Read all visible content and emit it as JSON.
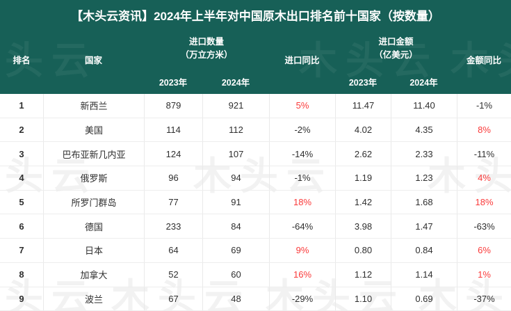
{
  "title": "【木头云资讯】2024年上半年对中国原木出口排名前十国家（按数量）",
  "watermark_text": "木头云",
  "colors": {
    "header_green": "#176057",
    "accent_red": "#fa3a3a",
    "body_text": "#2f2f2f"
  },
  "header": {
    "rank": "排名",
    "country": "国家",
    "qty_group_line1": "进口数量",
    "qty_group_line2": "（万立方米）",
    "qty_yoy": "进口同比",
    "amt_group_line1": "进口金额",
    "amt_group_line2": "（亿美元）",
    "amt_yoy": "金额同比",
    "qty_year_2023": "2023年",
    "qty_year_2024": "2024年",
    "amt_year_2023": "2023年",
    "amt_year_2024": "2024年"
  },
  "rows": [
    {
      "rank": "1",
      "country": "新西兰",
      "qty_2023": "879",
      "qty_2024": "921",
      "qty_yoy": "5%",
      "qty_yoy_up": true,
      "amt_2023": "11.47",
      "amt_2024": "11.40",
      "amt_yoy": "-1%",
      "amt_yoy_up": false
    },
    {
      "rank": "2",
      "country": "美国",
      "qty_2023": "114",
      "qty_2024": "112",
      "qty_yoy": "-2%",
      "qty_yoy_up": false,
      "amt_2023": "4.02",
      "amt_2024": "4.35",
      "amt_yoy": "8%",
      "amt_yoy_up": true
    },
    {
      "rank": "3",
      "country": "巴布亚新几内亚",
      "qty_2023": "124",
      "qty_2024": "107",
      "qty_yoy": "-14%",
      "qty_yoy_up": false,
      "amt_2023": "2.62",
      "amt_2024": "2.33",
      "amt_yoy": "-11%",
      "amt_yoy_up": false
    },
    {
      "rank": "4",
      "country": "俄罗斯",
      "qty_2023": "96",
      "qty_2024": "94",
      "qty_yoy": "-1%",
      "qty_yoy_up": false,
      "amt_2023": "1.19",
      "amt_2024": "1.23",
      "amt_yoy": "4%",
      "amt_yoy_up": true
    },
    {
      "rank": "5",
      "country": "所罗门群岛",
      "qty_2023": "77",
      "qty_2024": "91",
      "qty_yoy": "18%",
      "qty_yoy_up": true,
      "amt_2023": "1.42",
      "amt_2024": "1.68",
      "amt_yoy": "18%",
      "amt_yoy_up": true
    },
    {
      "rank": "6",
      "country": "德国",
      "qty_2023": "233",
      "qty_2024": "84",
      "qty_yoy": "-64%",
      "qty_yoy_up": false,
      "amt_2023": "3.98",
      "amt_2024": "1.47",
      "amt_yoy": "-63%",
      "amt_yoy_up": false
    },
    {
      "rank": "7",
      "country": "日本",
      "qty_2023": "64",
      "qty_2024": "69",
      "qty_yoy": "9%",
      "qty_yoy_up": true,
      "amt_2023": "0.80",
      "amt_2024": "0.84",
      "amt_yoy": "6%",
      "amt_yoy_up": true
    },
    {
      "rank": "8",
      "country": "加拿大",
      "qty_2023": "52",
      "qty_2024": "60",
      "qty_yoy": "16%",
      "qty_yoy_up": true,
      "amt_2023": "1.12",
      "amt_2024": "1.14",
      "amt_yoy": "1%",
      "amt_yoy_up": true
    },
    {
      "rank": "9",
      "country": "波兰",
      "qty_2023": "67",
      "qty_2024": "48",
      "qty_yoy": "-29%",
      "qty_yoy_up": false,
      "amt_2023": "1.10",
      "amt_2024": "0.69",
      "amt_yoy": "-37%",
      "amt_yoy_up": false
    }
  ],
  "chart_data": {
    "type": "table",
    "title": "【木头云资讯】2024年上半年对中国原木出口排名前十国家（按数量）",
    "columns": [
      "排名",
      "国家",
      "进口数量 2023年（万立方米）",
      "进口数量 2024年（万立方米）",
      "进口同比",
      "进口金额 2023年（亿美元）",
      "进口金额 2024年（亿美元）",
      "金额同比"
    ],
    "rows": [
      [
        1,
        "新西兰",
        879,
        921,
        "5%",
        11.47,
        11.4,
        "-1%"
      ],
      [
        2,
        "美国",
        114,
        112,
        "-2%",
        4.02,
        4.35,
        "8%"
      ],
      [
        3,
        "巴布亚新几内亚",
        124,
        107,
        "-14%",
        2.62,
        2.33,
        "-11%"
      ],
      [
        4,
        "俄罗斯",
        96,
        94,
        "-1%",
        1.19,
        1.23,
        "4%"
      ],
      [
        5,
        "所罗门群岛",
        77,
        91,
        "18%",
        1.42,
        1.68,
        "18%"
      ],
      [
        6,
        "德国",
        233,
        84,
        "-64%",
        3.98,
        1.47,
        "-63%"
      ],
      [
        7,
        "日本",
        64,
        69,
        "9%",
        0.8,
        0.84,
        "6%"
      ],
      [
        8,
        "加拿大",
        52,
        60,
        "16%",
        1.12,
        1.14,
        "1%"
      ],
      [
        9,
        "波兰",
        67,
        48,
        "-29%",
        1.1,
        0.69,
        "-37%"
      ]
    ],
    "notes": "positive_yoy_values_shown_in_red; row 10 cut off at bottom edge of screenshot"
  }
}
